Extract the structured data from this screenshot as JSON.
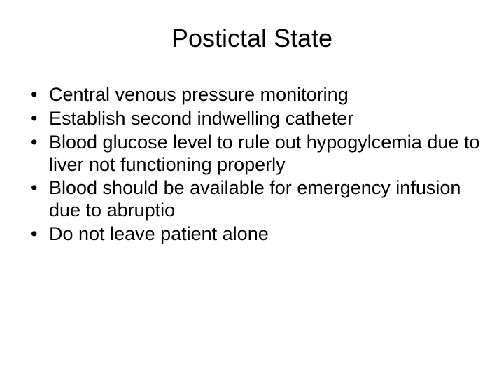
{
  "slide": {
    "title": "Postictal State",
    "title_fontsize": 36,
    "body_fontsize": 27,
    "background_color": "#ffffff",
    "text_color": "#000000",
    "font_family": "Arial",
    "bullets": [
      "Central venous pressure monitoring",
      "Establish second indwelling catheter",
      "Blood glucose level to rule out hypogylcemia due to liver not functioning properly",
      "Blood should be available for emergency infusion due to abruptio",
      "Do not leave patient alone"
    ]
  }
}
